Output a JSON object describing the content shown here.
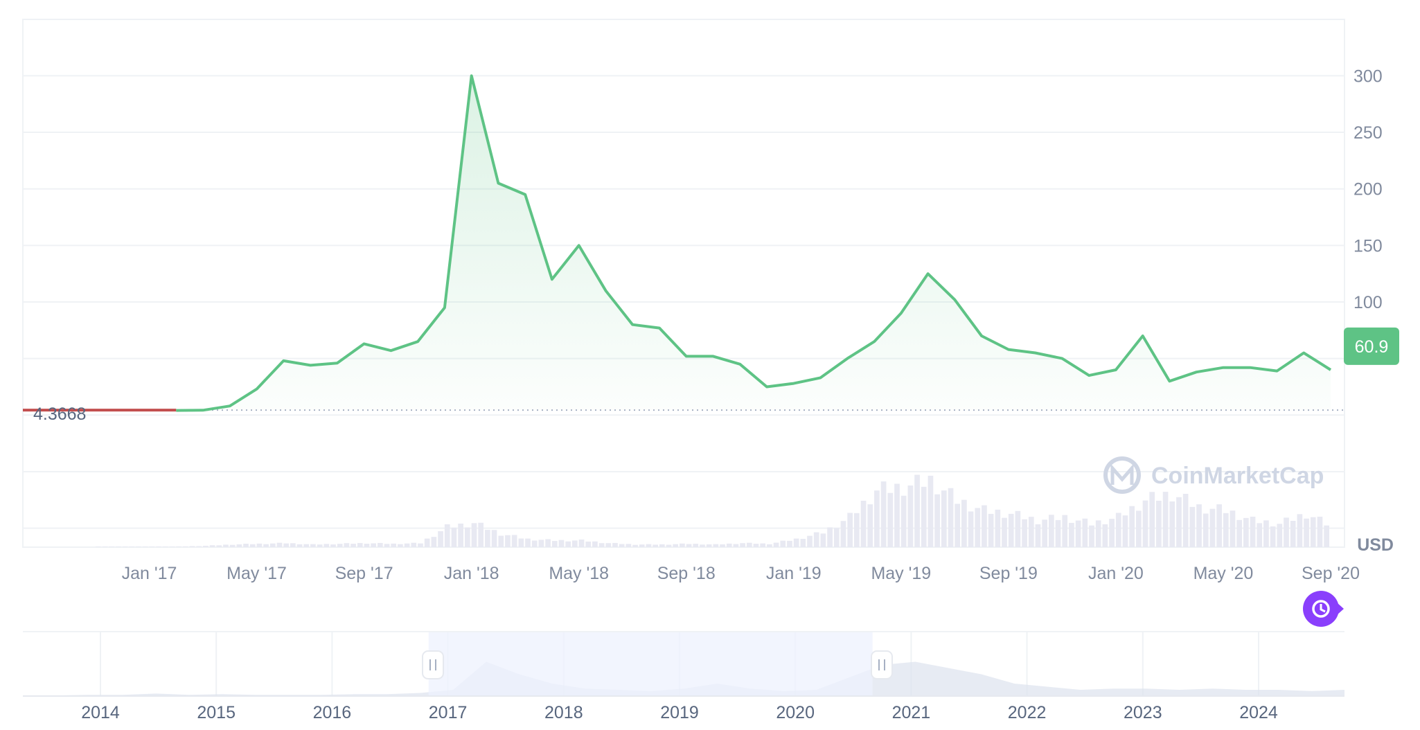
{
  "watermark": "CoinMarketCap",
  "unit": "USD",
  "colors": {
    "line": "#5ec385",
    "below_base": "#c24e4e",
    "last_price_badge": "#5ec385",
    "volume": "#e8e9f2",
    "navigator_selection": "#eef1fd",
    "navigator_area": "#dde2ee",
    "tools_button": "#8a3ffc"
  },
  "last_price_label": "60.9",
  "base_price_label": "4.3668",
  "icons": {
    "navigator_handle": "pause-grip-icon",
    "tools_button": "clock-arrow-icon"
  },
  "navigator": {
    "ticks": [
      "2014",
      "2015",
      "2016",
      "2017",
      "2018",
      "2019",
      "2020",
      "2021",
      "2022",
      "2023",
      "2024"
    ],
    "selection_range": [
      "Nov 2016",
      "Sep 2020"
    ]
  },
  "chart_data": {
    "type": "line",
    "title": "",
    "xlabel": "",
    "ylabel": "USD",
    "base_value": 4.3668,
    "last_value": 60.9,
    "ylim": [
      -125,
      350
    ],
    "yticks": [
      100,
      150,
      200,
      250,
      300
    ],
    "xticks": [
      "Jan '17",
      "May '17",
      "Sep '17",
      "Jan '18",
      "May '18",
      "Sep '18",
      "Jan '19",
      "May '19",
      "Sep '19",
      "Jan '20",
      "May '20",
      "Sep '20"
    ],
    "xrange": [
      "2016-11",
      "2020-09"
    ],
    "grid": true,
    "x": [
      "2016-11",
      "2016-12",
      "2017-01",
      "2017-02",
      "2017-03",
      "2017-04",
      "2017-05",
      "2017-06",
      "2017-07",
      "2017-08",
      "2017-09",
      "2017-10",
      "2017-11",
      "2017-12",
      "2018-01",
      "2018-02",
      "2018-03",
      "2018-04",
      "2018-05",
      "2018-06",
      "2018-07",
      "2018-08",
      "2018-09",
      "2018-10",
      "2018-11",
      "2018-12",
      "2019-01",
      "2019-02",
      "2019-03",
      "2019-04",
      "2019-05",
      "2019-06",
      "2019-07",
      "2019-08",
      "2019-09",
      "2019-10",
      "2019-11",
      "2019-12",
      "2020-01",
      "2020-02",
      "2020-03",
      "2020-04",
      "2020-05",
      "2020-06",
      "2020-07",
      "2020-08",
      "2020-09"
    ],
    "series": [
      {
        "values": [
          4.0,
          4.0,
          4.0,
          4.1,
          4.3,
          8.0,
          23.0,
          48.0,
          44.0,
          46.0,
          63.0,
          57.0,
          65.0,
          95.0,
          300.0,
          205.0,
          195.0,
          120.0,
          150.0,
          110.0,
          80.0,
          77.0,
          52.0,
          52.0,
          45.0,
          25.0,
          28.0,
          33.0,
          50.0,
          65.0,
          90.0,
          125.0,
          102.0,
          70.0,
          58.0,
          55.0,
          50.0,
          35.0,
          40.0,
          70.0,
          30.0,
          38.0,
          42.0,
          42.0,
          39.0,
          55.0,
          40.0
        ]
      }
    ],
    "volume_relative": [
      0.0,
      0.0,
      0.01,
      0.01,
      0.02,
      0.04,
      0.05,
      0.06,
      0.04,
      0.05,
      0.06,
      0.05,
      0.06,
      0.3,
      0.36,
      0.2,
      0.12,
      0.1,
      0.1,
      0.06,
      0.04,
      0.04,
      0.05,
      0.04,
      0.06,
      0.05,
      0.12,
      0.22,
      0.45,
      0.85,
      0.9,
      1.0,
      0.7,
      0.55,
      0.5,
      0.4,
      0.45,
      0.35,
      0.45,
      0.7,
      0.8,
      0.6,
      0.55,
      0.4,
      0.35,
      0.5,
      0.3
    ]
  }
}
